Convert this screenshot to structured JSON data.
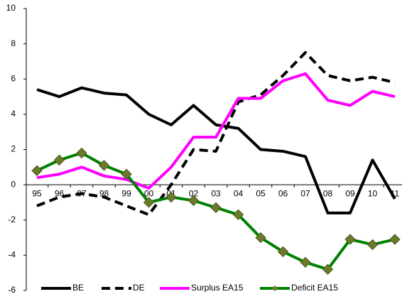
{
  "chart_data": {
    "type": "line",
    "categories": [
      "95",
      "96",
      "97",
      "98",
      "99",
      "00",
      "01",
      "02",
      "03",
      "04",
      "05",
      "06",
      "07",
      "08",
      "09",
      "10",
      "11"
    ],
    "ylim": [
      -6,
      10
    ],
    "yticks": [
      -6,
      -4,
      -2,
      0,
      2,
      4,
      6,
      8,
      10
    ],
    "grid": false,
    "legend": "bottom",
    "series": [
      {
        "name": "BE",
        "color": "#000000",
        "dash": false,
        "marker": false,
        "values": [
          5.4,
          5.0,
          5.5,
          5.2,
          5.1,
          4.0,
          3.4,
          4.5,
          3.4,
          3.2,
          2.0,
          1.9,
          1.6,
          -1.6,
          -1.6,
          1.4,
          -0.8
        ]
      },
      {
        "name": "DE",
        "color": "#000000",
        "dash": true,
        "marker": false,
        "values": [
          -1.2,
          -0.7,
          -0.5,
          -0.7,
          -1.2,
          -1.7,
          0.0,
          2.0,
          1.9,
          4.7,
          5.1,
          6.2,
          7.5,
          6.2,
          5.9,
          6.1,
          5.8
        ]
      },
      {
        "name": "Surplus EA15",
        "color": "#ff00ff",
        "dash": false,
        "marker": false,
        "values": [
          0.4,
          0.6,
          1.0,
          0.5,
          0.3,
          -0.2,
          1.0,
          2.7,
          2.7,
          4.9,
          4.9,
          5.9,
          6.3,
          4.8,
          4.5,
          5.3,
          5.0
        ]
      },
      {
        "name": "Deficit EA15",
        "color": "#008000",
        "dash": false,
        "marker": true,
        "marker_color": "#6b7a2a",
        "values": [
          0.8,
          1.4,
          1.8,
          1.1,
          0.6,
          -1.0,
          -0.7,
          -0.9,
          -1.3,
          -1.7,
          -3.0,
          -3.8,
          -4.4,
          -4.8,
          -3.1,
          -3.4,
          -3.1
        ]
      }
    ]
  }
}
